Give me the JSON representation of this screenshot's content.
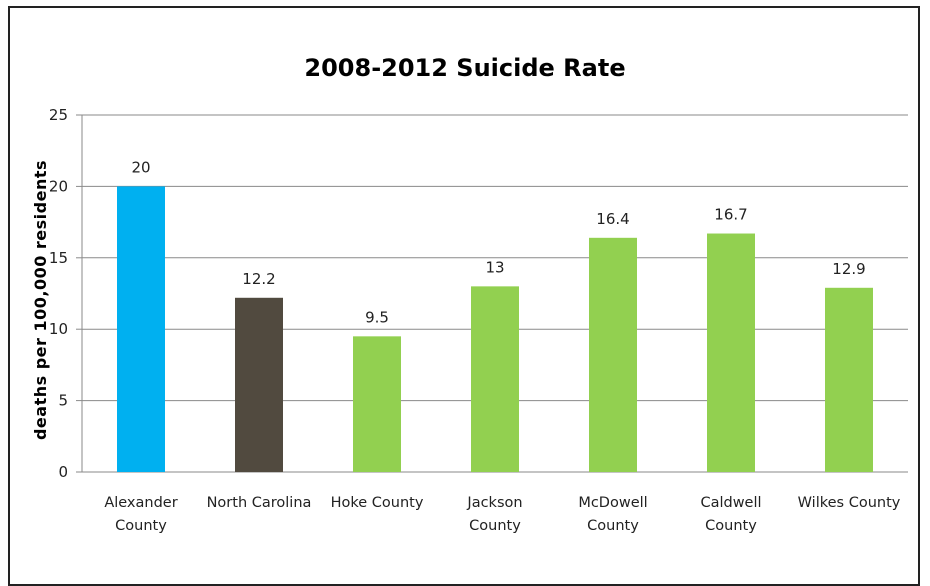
{
  "chart_data": {
    "type": "bar",
    "title": "2008-2012 Suicide Rate",
    "ylabel": "deaths per 100,000 residents",
    "xlabel": "",
    "ylim": [
      0,
      25
    ],
    "yticks": [
      0,
      5,
      10,
      15,
      20,
      25
    ],
    "grid": true,
    "categories": [
      [
        "Alexander",
        "County"
      ],
      [
        "North Carolina"
      ],
      [
        "Hoke County"
      ],
      [
        "Jackson",
        "County"
      ],
      [
        "McDowell",
        "County"
      ],
      [
        "Caldwell",
        "County"
      ],
      [
        "Wilkes County"
      ]
    ],
    "values": [
      20,
      12.2,
      9.5,
      13,
      16.4,
      16.7,
      12.9
    ],
    "data_labels": [
      "20",
      "12.2",
      "9.5",
      "13",
      "16.4",
      "16.7",
      "12.9"
    ],
    "colors": [
      "#00b0f0",
      "#514a3f",
      "#92d050",
      "#92d050",
      "#92d050",
      "#92d050",
      "#92d050"
    ]
  }
}
